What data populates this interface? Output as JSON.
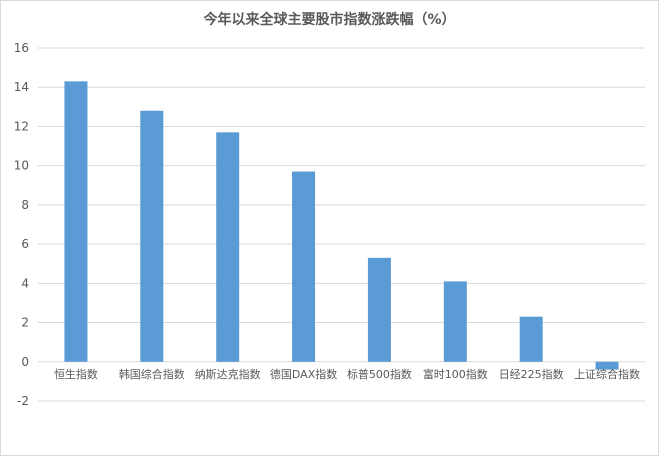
{
  "chart_data": {
    "type": "bar",
    "title": "今年以来全球主要股市指数涨跌幅（%）",
    "categories": [
      "恒生指数",
      "韩国综合指数",
      "纳斯达克指数",
      "德国DAX指数",
      "标普500指数",
      "富时100指数",
      "日经225指数",
      "上证综合指数"
    ],
    "values": [
      14.3,
      12.8,
      11.7,
      9.7,
      5.3,
      4.1,
      2.3,
      -0.4
    ],
    "ylim": [
      -2,
      16
    ],
    "yticks": [
      "-2",
      "0",
      "2",
      "4",
      "6",
      "8",
      "10",
      "12",
      "14",
      "16"
    ],
    "grid": true,
    "bar_color": "#5b9bd5",
    "legend": "none"
  }
}
